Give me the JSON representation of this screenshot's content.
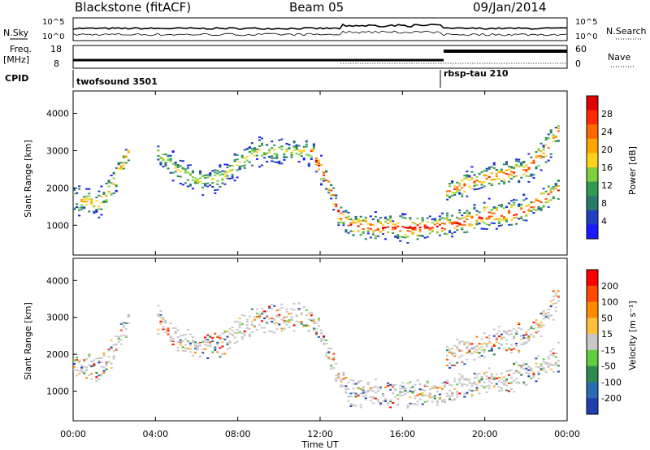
{
  "header": {
    "station": "Blackstone (fitACF)",
    "beam": "Beam 05",
    "date": "09/Jan/2014"
  },
  "top_panel": {
    "left_label": "N.Sky",
    "left_ticks": [
      "10^5",
      "10^0"
    ],
    "right_label": "N.Search",
    "right_ticks": [
      "10^5",
      "10^0"
    ]
  },
  "freq_panel": {
    "left_label_1": "Freq.",
    "left_label_2": "[MHz]",
    "left_ticks": [
      "18",
      "8"
    ],
    "right_label": "Nave",
    "right_ticks": [
      "60",
      "0"
    ]
  },
  "cpid": {
    "label": "CPID",
    "segments": [
      {
        "name": "twofsound 3501",
        "start_hour": 0,
        "end_hour": 18
      },
      {
        "name": "rbsp-tau 210",
        "start_hour": 18,
        "end_hour": 24
      }
    ]
  },
  "colors": {
    "power": [
      "#1a1aff",
      "#2040c0",
      "#2a7a6a",
      "#2f9a50",
      "#7fcf3f",
      "#ffd21a",
      "#ffa500",
      "#ff6a00",
      "#ff2a00",
      "#e00000"
    ],
    "velocity": [
      "#1f3fb0",
      "#2a6ab0",
      "#2f8a50",
      "#5fcf3f",
      "#c8c8c8",
      "#ffbf3a",
      "#ff8a00",
      "#ff4a00",
      "#ff0000"
    ]
  },
  "chart_data": [
    {
      "type": "heatmap",
      "panel": "power",
      "xlabel": "Time UT",
      "ylabel": "Slant Range [km]",
      "xlim": [
        0,
        24
      ],
      "ylim": [
        200,
        4600
      ],
      "x_ticks": [
        "00:00",
        "04:00",
        "08:00",
        "12:00",
        "16:00",
        "20:00",
        "00:00"
      ],
      "y_ticks": [
        "1000",
        "2000",
        "3000",
        "4000"
      ],
      "colorbar_label": "Power [dB]",
      "colorbar_ticks": [
        "28",
        "24",
        "20",
        "16",
        "12",
        "8",
        "4"
      ],
      "echo_bands": [
        {
          "name": "near",
          "points": [
            [
              0,
              1700
            ],
            [
              1.2,
              1600
            ],
            [
              1.8,
              2000
            ],
            [
              2.2,
              2500
            ],
            [
              2.7,
              3000
            ]
          ],
          "max_power": 20
        },
        {
          "name": "arc",
          "points": [
            [
              4,
              3000
            ],
            [
              5,
              2500
            ],
            [
              6,
              2200
            ],
            [
              7.2,
              2300
            ],
            [
              8,
              2700
            ],
            [
              9,
              3000
            ],
            [
              10.5,
              3000
            ],
            [
              11.5,
              3000
            ]
          ],
          "max_power": 16
        },
        {
          "name": "descent",
          "points": [
            [
              11.5,
              3000
            ],
            [
              12.3,
              2200
            ],
            [
              12.9,
              1300
            ],
            [
              13.5,
              1000
            ],
            [
              15,
              950
            ],
            [
              16.5,
              950
            ],
            [
              18,
              1000
            ],
            [
              19,
              1100
            ],
            [
              20,
              1300
            ],
            [
              21,
              1300
            ],
            [
              22,
              1450
            ],
            [
              23,
              1800
            ],
            [
              23.6,
              2000
            ]
          ],
          "max_power": 28
        },
        {
          "name": "upper",
          "points": [
            [
              18,
              1900
            ],
            [
              19,
              2100
            ],
            [
              20,
              2300
            ],
            [
              21,
              2400
            ],
            [
              22,
              2500
            ],
            [
              23,
              3100
            ],
            [
              23.6,
              3600
            ]
          ],
          "max_power": 24
        }
      ]
    },
    {
      "type": "heatmap",
      "panel": "velocity",
      "xlabel": "Time UT",
      "ylabel": "Slant Range [km]",
      "xlim": [
        0,
        24
      ],
      "ylim": [
        200,
        4600
      ],
      "x_ticks": [
        "00:00",
        "04:00",
        "08:00",
        "12:00",
        "16:00",
        "20:00",
        "00:00"
      ],
      "y_ticks": [
        "1000",
        "2000",
        "3000",
        "4000"
      ],
      "colorbar_label": "Velocity [m s⁻¹]",
      "colorbar_ticks": [
        "200",
        "100",
        "50",
        "15",
        "-15",
        "-50",
        "-100",
        "-200"
      ],
      "echo_bands": [
        {
          "name": "near",
          "points": [
            [
              0,
              1700
            ],
            [
              1.2,
              1600
            ],
            [
              1.8,
              2000
            ],
            [
              2.2,
              2500
            ],
            [
              2.7,
              3000
            ]
          ],
          "max_power": 20
        },
        {
          "name": "arc",
          "points": [
            [
              4,
              3000
            ],
            [
              5,
              2500
            ],
            [
              6,
              2200
            ],
            [
              7.2,
              2300
            ],
            [
              8,
              2700
            ],
            [
              9,
              3000
            ],
            [
              10.5,
              3000
            ],
            [
              11.5,
              3000
            ]
          ],
          "max_power": 16
        },
        {
          "name": "descent",
          "points": [
            [
              11.5,
              3000
            ],
            [
              12.3,
              2200
            ],
            [
              12.9,
              1300
            ],
            [
              13.5,
              1000
            ],
            [
              15,
              950
            ],
            [
              16.5,
              950
            ],
            [
              18,
              1000
            ],
            [
              19,
              1100
            ],
            [
              20,
              1300
            ],
            [
              21,
              1300
            ],
            [
              22,
              1450
            ],
            [
              23,
              1800
            ],
            [
              23.6,
              2000
            ]
          ],
          "max_power": 28
        },
        {
          "name": "upper",
          "points": [
            [
              18,
              1900
            ],
            [
              19,
              2100
            ],
            [
              20,
              2300
            ],
            [
              21,
              2400
            ],
            [
              22,
              2500
            ],
            [
              23,
              3100
            ],
            [
              23.6,
              3600
            ]
          ],
          "max_power": 24
        }
      ]
    }
  ]
}
